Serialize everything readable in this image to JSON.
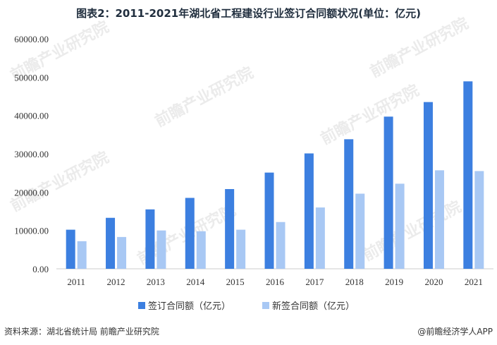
{
  "title": "图表2：2011-2021年湖北省工程建设行业签订合同额状况(单位：亿元)",
  "source": "资料来源：湖北省统计局 前瞻产业研究院",
  "brand": "@前瞻经济学人APP",
  "watermark": "前瞻产业研究院",
  "colors": {
    "signed": "#3c7fe0",
    "new": "#a8c8f4",
    "axis": "#cccccc"
  },
  "chart_data": {
    "type": "bar",
    "categories": [
      "2011",
      "2012",
      "2013",
      "2014",
      "2015",
      "2016",
      "2017",
      "2018",
      "2019",
      "2020",
      "2021"
    ],
    "series": [
      {
        "name": "签订合同额（亿元）",
        "values": [
          10200,
          13300,
          15500,
          18500,
          20800,
          25100,
          30100,
          33800,
          39700,
          43500,
          48900
        ]
      },
      {
        "name": "新签合同额（亿元）",
        "values": [
          7200,
          8300,
          10000,
          9800,
          10200,
          12200,
          16000,
          19600,
          22200,
          25700,
          25500
        ]
      }
    ],
    "yticks": [
      "0.00",
      "10000.00",
      "20000.00",
      "30000.00",
      "40000.00",
      "50000.00",
      "60000.00"
    ],
    "ylim": [
      0,
      60000
    ],
    "grid": false,
    "legend": "bottom"
  }
}
